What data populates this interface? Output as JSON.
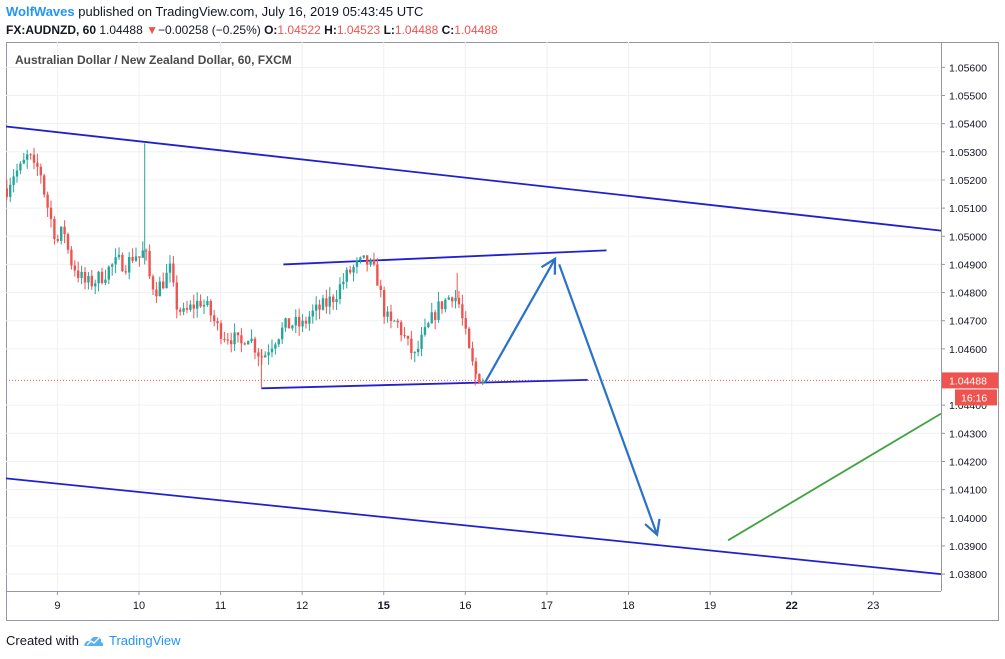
{
  "header": {
    "author": "WolfWaves",
    "published_text": "published on TradingView.com, July 16, 2019 05:43:45 UTC"
  },
  "quote": {
    "symbol_label": "FX:AUDNZD, 60",
    "last": "1.04488",
    "change_arrow": "▼",
    "change": "−0.00258 (−0.25%)",
    "o_label": "O:",
    "o_value": "1.04522",
    "h_label": "H:",
    "h_value": "1.04523",
    "l_label": "L:",
    "l_value": "1.04488",
    "c_label": "C:",
    "c_value": "1.04488"
  },
  "footer": {
    "created_with": "Created with",
    "brand": "TradingView",
    "logo_icon": "tradingview-logo-icon"
  },
  "colors": {
    "up": "#26a69a",
    "down": "#ef5350",
    "channel": "#2020d0",
    "arrow": "#2a72c8",
    "green_line": "#3fa33f",
    "price_label_bg": "#ef5350"
  },
  "chart_data": {
    "type": "candlestick",
    "title": "Australian Dollar / New Zealand Dollar, 60, FXCM",
    "y_ticks": [
      "1.05600",
      "1.05500",
      "1.05400",
      "1.05300",
      "1.05200",
      "1.05100",
      "1.05000",
      "1.04900",
      "1.04800",
      "1.04700",
      "1.04600",
      "1.04400",
      "1.04300",
      "1.04200",
      "1.04100",
      "1.04000",
      "1.03900",
      "1.03800"
    ],
    "x_ticks": [
      {
        "label": "9",
        "x": 9,
        "bold": false
      },
      {
        "label": "10",
        "x": 10,
        "bold": false
      },
      {
        "label": "11",
        "x": 11,
        "bold": false
      },
      {
        "label": "12",
        "x": 12,
        "bold": false
      },
      {
        "label": "15",
        "x": 13,
        "bold": true
      },
      {
        "label": "16",
        "x": 14,
        "bold": false
      },
      {
        "label": "17",
        "x": 15,
        "bold": false
      },
      {
        "label": "18",
        "x": 16,
        "bold": false
      },
      {
        "label": "19",
        "x": 17,
        "bold": false
      },
      {
        "label": "22",
        "x": 18,
        "bold": true
      },
      {
        "label": "23",
        "x": 19,
        "bold": false
      }
    ],
    "x_range": [
      8.37,
      19.83
    ],
    "y_range": [
      1.0374,
      1.0569
    ],
    "grid": true,
    "current_price": {
      "value": 1.04488,
      "label": "1.04488",
      "countdown": "16:16"
    },
    "price_path": [
      [
        8.38,
        1.0517
      ],
      [
        8.45,
        1.0522
      ],
      [
        8.55,
        1.0524
      ],
      [
        8.65,
        1.0529
      ],
      [
        8.72,
        1.0523
      ],
      [
        8.78,
        1.0525
      ],
      [
        8.85,
        1.0514
      ],
      [
        8.92,
        1.0506
      ],
      [
        9.0,
        1.0498
      ],
      [
        9.08,
        1.0503
      ],
      [
        9.15,
        1.0492
      ],
      [
        9.25,
        1.0487
      ],
      [
        9.35,
        1.0483
      ],
      [
        9.45,
        1.0484
      ],
      [
        9.55,
        1.0486
      ],
      [
        9.65,
        1.0489
      ],
      [
        9.75,
        1.0491
      ],
      [
        9.85,
        1.049
      ],
      [
        9.95,
        1.0494
      ],
      [
        10.02,
        1.0492
      ],
      [
        10.07,
        1.0496
      ],
      [
        10.12,
        1.0486
      ],
      [
        10.2,
        1.0481
      ],
      [
        10.3,
        1.0484
      ],
      [
        10.38,
        1.0488
      ],
      [
        10.45,
        1.0476
      ],
      [
        10.55,
        1.0472
      ],
      [
        10.65,
        1.0475
      ],
      [
        10.75,
        1.0477
      ],
      [
        10.85,
        1.0474
      ],
      [
        10.95,
        1.0468
      ],
      [
        11.05,
        1.0465
      ],
      [
        11.15,
        1.0464
      ],
      [
        11.25,
        1.0461
      ],
      [
        11.32,
        1.0466
      ],
      [
        11.4,
        1.0462
      ],
      [
        11.46,
        1.0459
      ],
      [
        11.52,
        1.0457
      ],
      [
        11.6,
        1.0461
      ],
      [
        11.7,
        1.0465
      ],
      [
        11.8,
        1.0468
      ],
      [
        11.9,
        1.0469
      ],
      [
        12.0,
        1.0468
      ],
      [
        12.1,
        1.0472
      ],
      [
        12.2,
        1.0474
      ],
      [
        12.3,
        1.0476
      ],
      [
        12.4,
        1.0479
      ],
      [
        12.5,
        1.0484
      ],
      [
        12.6,
        1.0488
      ],
      [
        12.7,
        1.049
      ],
      [
        12.78,
        1.0491
      ],
      [
        12.85,
        1.0489
      ],
      [
        12.92,
        1.0485
      ],
      [
        13.0,
        1.0474
      ],
      [
        13.08,
        1.0468
      ],
      [
        13.15,
        1.047
      ],
      [
        13.22,
        1.0466
      ],
      [
        13.3,
        1.0461
      ],
      [
        13.38,
        1.0457
      ],
      [
        13.45,
        1.0462
      ],
      [
        13.55,
        1.0468
      ],
      [
        13.65,
        1.0474
      ],
      [
        13.75,
        1.0477
      ],
      [
        13.85,
        1.048
      ],
      [
        13.92,
        1.0476
      ],
      [
        13.98,
        1.0468
      ],
      [
        14.05,
        1.0458
      ],
      [
        14.12,
        1.0451
      ],
      [
        14.18,
        1.045
      ],
      [
        14.22,
        1.0449
      ]
    ],
    "wicks": [
      {
        "x": 10.07,
        "low": 1.049,
        "high": 1.0533
      },
      {
        "x": 11.5,
        "low": 1.0446,
        "high": 1.046
      },
      {
        "x": 13.9,
        "low": 1.0478,
        "high": 1.0487
      },
      {
        "x": 14.12,
        "low": 1.0447,
        "high": 1.0455
      }
    ],
    "drawings": [
      {
        "kind": "trendline",
        "name": "channel-upper-line",
        "color": "channel",
        "from": [
          8.37,
          1.0539
        ],
        "to": [
          19.83,
          1.0502
        ]
      },
      {
        "kind": "trendline",
        "name": "channel-lower-line",
        "color": "channel",
        "from": [
          8.37,
          1.0414
        ],
        "to": [
          19.83,
          1.038
        ]
      },
      {
        "kind": "trendline",
        "name": "range-upper-line",
        "color": "channel",
        "from": [
          11.77,
          1.049
        ],
        "to": [
          15.73,
          1.0495
        ]
      },
      {
        "kind": "trendline",
        "name": "range-lower-line",
        "color": "channel",
        "from": [
          11.5,
          1.0446
        ],
        "to": [
          15.5,
          1.0449
        ]
      },
      {
        "kind": "arrow",
        "name": "projection-up-arrow",
        "color": "arrow",
        "from": [
          14.24,
          1.0448
        ],
        "to": [
          15.1,
          1.0492
        ]
      },
      {
        "kind": "arrow",
        "name": "projection-down-arrow",
        "color": "arrow",
        "from": [
          15.15,
          1.049
        ],
        "to": [
          16.35,
          1.0394
        ]
      },
      {
        "kind": "trendline",
        "name": "projection-green-line",
        "color": "green_line",
        "from": [
          17.22,
          1.0392
        ],
        "to": [
          19.83,
          1.0437
        ]
      }
    ]
  }
}
